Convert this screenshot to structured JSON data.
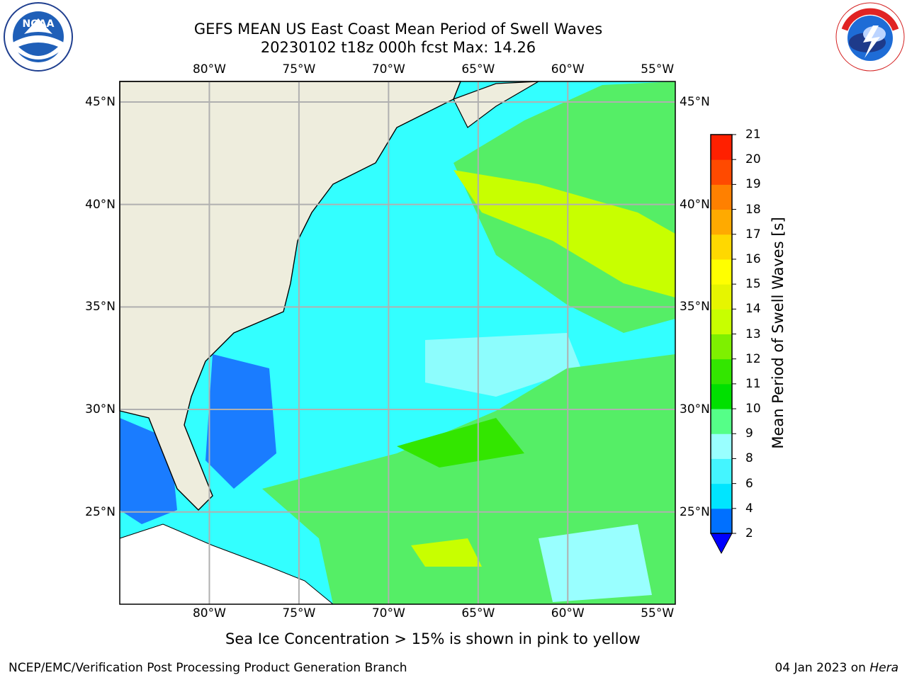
{
  "header": {
    "title_line1": "GEFS MEAN US East Coast Mean Period of Swell Waves",
    "title_line2": "20230102 t18z 000h fcst   Max: 14.26"
  },
  "logos": {
    "left": "noaa-logo",
    "left_text": "NOAA",
    "left_ring": "NATIONAL OCEANIC AND ATMOSPHERIC ADMINISTRATION · U.S. DEPARTMENT OF COMMERCE",
    "right": "nws-logo",
    "right_ring": "NATIONAL WEATHER SERVICE"
  },
  "map": {
    "lon_ticks": [
      "80°W",
      "75°W",
      "70°W",
      "65°W",
      "60°W",
      "55°W"
    ],
    "lat_ticks": [
      "45°N",
      "40°N",
      "35°N",
      "30°N",
      "25°N"
    ],
    "land_color": "#eeeddd",
    "grid_color": "#b0b0b0"
  },
  "colorbar": {
    "label": "Mean Period of Swell Waves [s]",
    "ticks": [
      "2",
      "4",
      "6",
      "8",
      "9",
      "10",
      "11",
      "12",
      "13",
      "14",
      "15",
      "16",
      "17",
      "18",
      "19",
      "20",
      "21"
    ],
    "colors": [
      "#0070ff",
      "#00e5ff",
      "#44f5ff",
      "#99ffff",
      "#55ff88",
      "#00e000",
      "#33e600",
      "#7ef000",
      "#c8ff00",
      "#e6f500",
      "#ffff00",
      "#ffd800",
      "#ffaa00",
      "#ff8000",
      "#ff4a00",
      "#ff2000"
    ],
    "under_color": "#0000ff"
  },
  "footer": {
    "note": "Sea Ice Concentration > 15% is shown in pink to yellow",
    "left": "NCEP/EMC/Verification Post Processing Product Generation Branch",
    "date": "04 Jan 2023 on",
    "host": "Hera"
  }
}
